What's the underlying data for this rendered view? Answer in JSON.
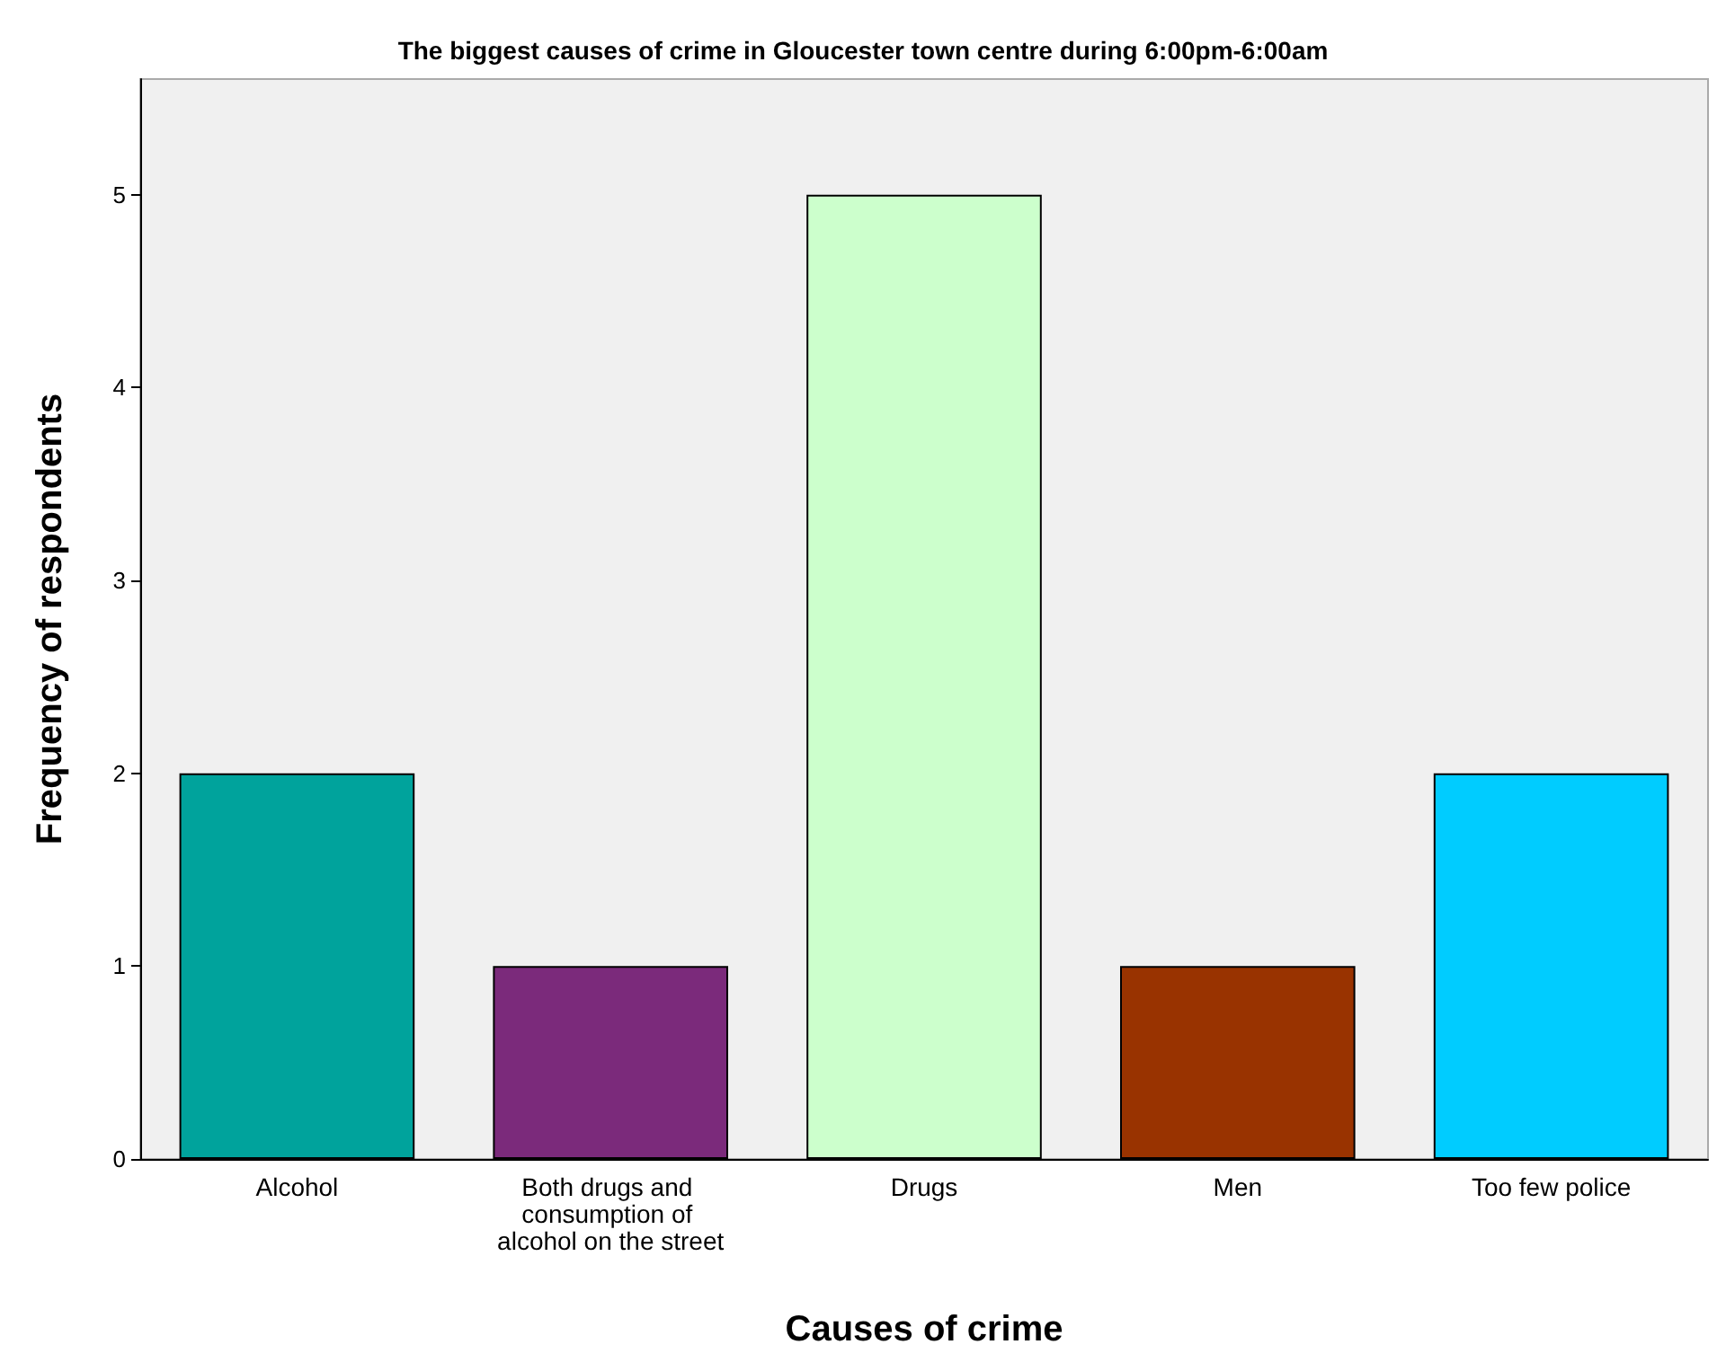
{
  "chart_data": {
    "type": "bar",
    "title": "The biggest causes of crime in Gloucester town centre during 6:00pm-6:00am",
    "xlabel": "Causes of crime",
    "ylabel": "Frequency of respondents",
    "categories": [
      "Alcohol",
      "Both drugs and consumption of alcohol on the street",
      "Drugs",
      "Men",
      "Too few police"
    ],
    "values": [
      2,
      1,
      5,
      1,
      2
    ],
    "colors": [
      "#00a39c",
      "#7b2a7b",
      "#ccffcc",
      "#993300",
      "#00ccff"
    ],
    "ylim": [
      0,
      5.6
    ],
    "yticks": [
      0,
      1,
      2,
      3,
      4,
      5
    ],
    "grid": false
  }
}
